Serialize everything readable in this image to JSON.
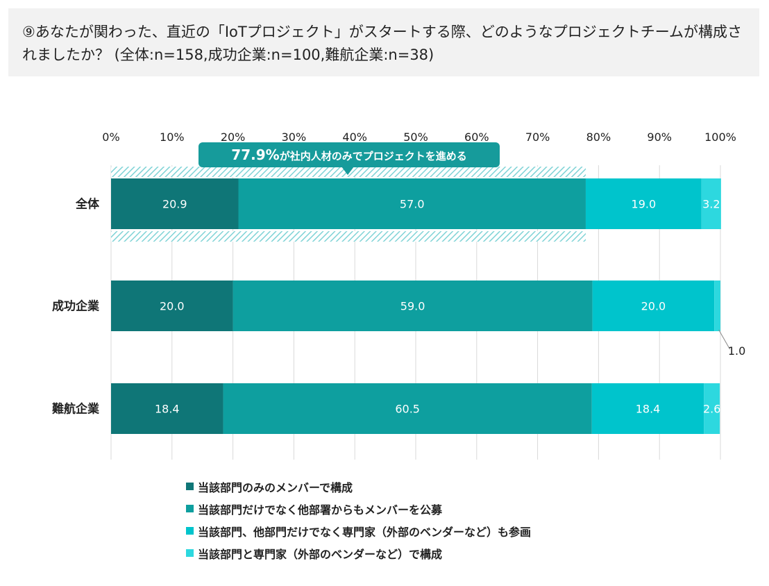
{
  "title": "⑨あなたが関わった、直近の「IoTプロジェクト」がスタートする際、どのようなプロジェクトチームが構成されましたか？ (全体:n=158,成功企業:n=100,難航企業:n=38)",
  "callout": {
    "value": "77.9%",
    "text": "が社内人材のみでプロジェクトを進める"
  },
  "colors": {
    "series": [
      "#0f7677",
      "#0e9f9f",
      "#00c4cc",
      "#2dd8df"
    ],
    "callout_bg": "#169b9b",
    "hatch": "#7fd3d6"
  },
  "chart_data": {
    "type": "bar",
    "orientation": "horizontal",
    "stacked": true,
    "categories": [
      "全体",
      "成功企業",
      "難航企業"
    ],
    "series": [
      {
        "name": "当該部門のみのメンバーで構成",
        "values": [
          20.9,
          20.0,
          18.4
        ]
      },
      {
        "name": "当該部門だけでなく他部署からもメンバーを公募",
        "values": [
          57.0,
          59.0,
          60.5
        ]
      },
      {
        "name": "当該部門、他部門だけでなく専門家（外部のベンダーなど）も参画",
        "values": [
          19.0,
          20.0,
          18.4
        ]
      },
      {
        "name": "当該部門と専門家（外部のベンダーなど）で構成",
        "values": [
          3.2,
          1.0,
          2.6
        ]
      }
    ],
    "xticks": [
      "0%",
      "10%",
      "20%",
      "30%",
      "40%",
      "50%",
      "60%",
      "70%",
      "80%",
      "90%",
      "100%"
    ],
    "xlim": [
      0,
      100
    ],
    "grid": true,
    "legend_position": "bottom",
    "highlight": {
      "category": "全体",
      "from": 0,
      "to": 77.9
    }
  }
}
